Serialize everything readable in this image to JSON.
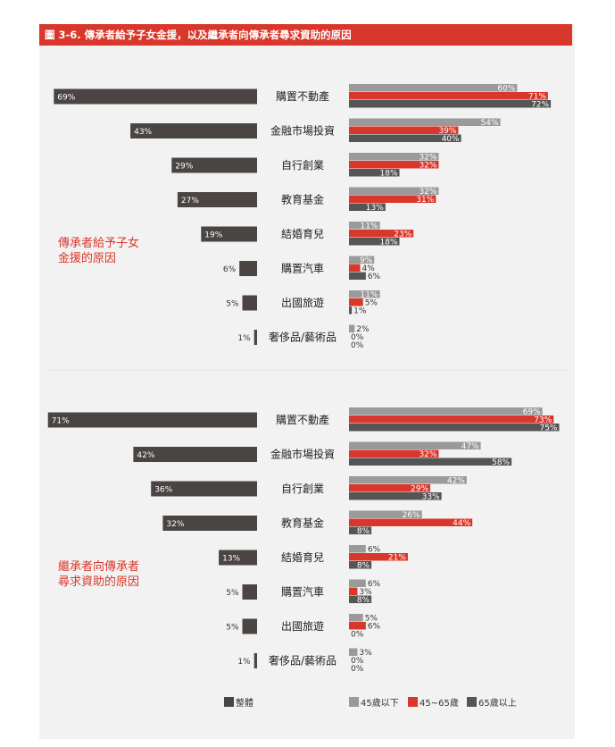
{
  "title": "圖 3-6. 傳承者給予子女金援，以及繼承者向傳承者尋求資助的原因",
  "colors": {
    "overall": "#4a4442",
    "under45": "#9a9a9a",
    "age45_65": "#d9372b",
    "over65": "#555555",
    "accent": "#d9372b"
  },
  "legend": {
    "overall": "整體",
    "under45": "45歲以下",
    "age45_65": "45~65歲",
    "over65": "65歲以上"
  },
  "chart_data": [
    {
      "type": "bar",
      "panel_label": [
        "傳承者給予子女",
        "金援的原因"
      ],
      "categories": [
        "購置不動產",
        "金融市場投資",
        "自行創業",
        "教育基金",
        "結婚育兒",
        "購置汽車",
        "出國旅遊",
        "奢侈品/藝術品"
      ],
      "overall": [
        69,
        43,
        29,
        27,
        19,
        6,
        5,
        1
      ],
      "series": [
        {
          "name": "45歲以下",
          "values": [
            60,
            54,
            32,
            32,
            11,
            9,
            11,
            2
          ]
        },
        {
          "name": "45~65歲",
          "values": [
            71,
            39,
            32,
            31,
            23,
            4,
            5,
            0
          ]
        },
        {
          "name": "65歲以上",
          "values": [
            72,
            40,
            18,
            13,
            18,
            6,
            1,
            0
          ]
        }
      ]
    },
    {
      "type": "bar",
      "panel_label": [
        "繼承者向傳承者",
        "尋求資助的原因"
      ],
      "categories": [
        "購置不動產",
        "金融市場投資",
        "自行創業",
        "教育基金",
        "結婚育兒",
        "購置汽車",
        "出國旅遊",
        "奢侈品/藝術品"
      ],
      "overall": [
        71,
        42,
        36,
        32,
        13,
        5,
        5,
        1
      ],
      "series": [
        {
          "name": "45歲以下",
          "values": [
            69,
            47,
            42,
            26,
            6,
            6,
            5,
            3
          ]
        },
        {
          "name": "45~65歲",
          "values": [
            73,
            32,
            29,
            44,
            21,
            3,
            6,
            0
          ]
        },
        {
          "name": "65歲以上",
          "values": [
            75,
            58,
            33,
            8,
            8,
            8,
            0,
            0
          ]
        }
      ]
    }
  ]
}
